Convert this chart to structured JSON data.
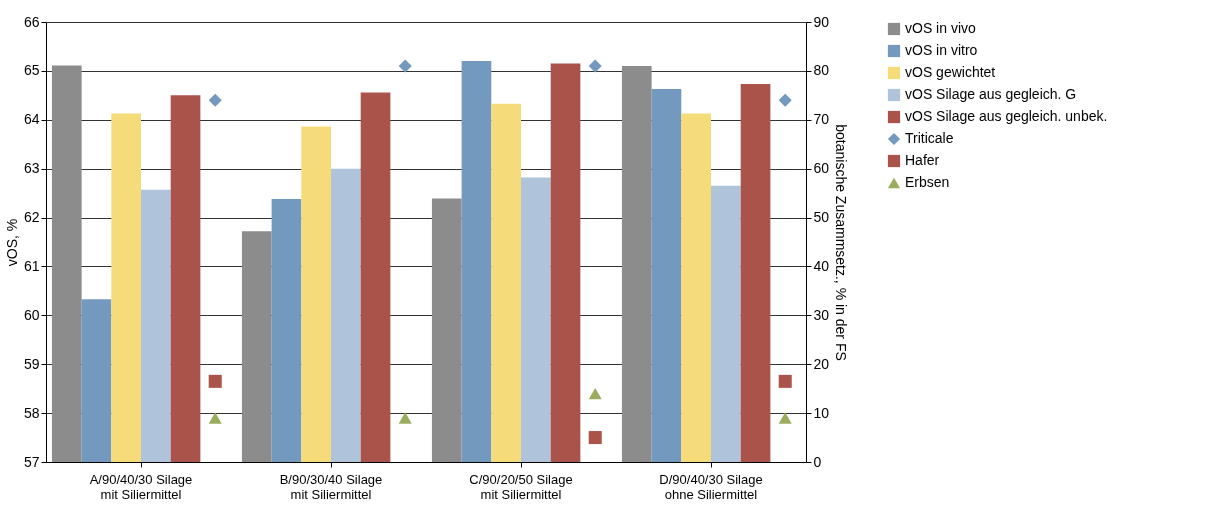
{
  "chart_data": {
    "type": "bar",
    "ylabel": "vOS, %",
    "y2label": "botanische Zusammsetz., % in der FS",
    "categories": [
      "A/90/40/30 Silage\nmit Siliermittel",
      "B/90/30/40 Silage\nmit Siliermittel",
      "C/90/20/50 Silage\nmit Siliermittel",
      "D/90/40/30 Silage\nohne Siliermittel"
    ],
    "series": [
      {
        "name": "vOS in vivo",
        "color": "#8c8c8c",
        "values": [
          65.11,
          61.72,
          62.39,
          65.1
        ]
      },
      {
        "name": "vOS in vitro",
        "color": "#7399bf",
        "values": [
          60.33,
          62.38,
          65.2,
          64.63
        ]
      },
      {
        "name": "vOS gewichtet",
        "color": "#f5db7a",
        "values": [
          64.13,
          63.86,
          64.33,
          64.13
        ]
      },
      {
        "name": "vOS Silage aus gegleich. G",
        "color": "#afc3db",
        "values": [
          62.57,
          63.0,
          62.82,
          62.65
        ]
      },
      {
        "name": "vOS Silage aus gegleich. unbek.",
        "color": "#aa534b",
        "values": [
          64.5,
          64.56,
          65.15,
          64.73
        ]
      },
      {
        "name": "Triticale",
        "color": "#7399bf",
        "type": "scatter",
        "axis": "y2",
        "marker": "diamond",
        "values": [
          74,
          81,
          81,
          74
        ]
      },
      {
        "name": "Hafer",
        "color": "#aa534b",
        "type": "scatter",
        "axis": "y2",
        "marker": "square",
        "values": [
          16.5,
          null,
          5,
          16.5
        ]
      },
      {
        "name": "Erbsen",
        "color": "#9aad5f",
        "type": "scatter",
        "axis": "y2",
        "marker": "triangle",
        "values": [
          9,
          9,
          14,
          9
        ]
      }
    ],
    "ylim": [
      57,
      66
    ],
    "yticks": [
      57,
      58,
      59,
      60,
      61,
      62,
      63,
      64,
      65,
      66
    ],
    "y2lim": [
      0,
      90
    ],
    "y2ticks": [
      0,
      10,
      20,
      30,
      40,
      50,
      60,
      70,
      80,
      90
    ],
    "grid": "y",
    "legend": "right"
  }
}
